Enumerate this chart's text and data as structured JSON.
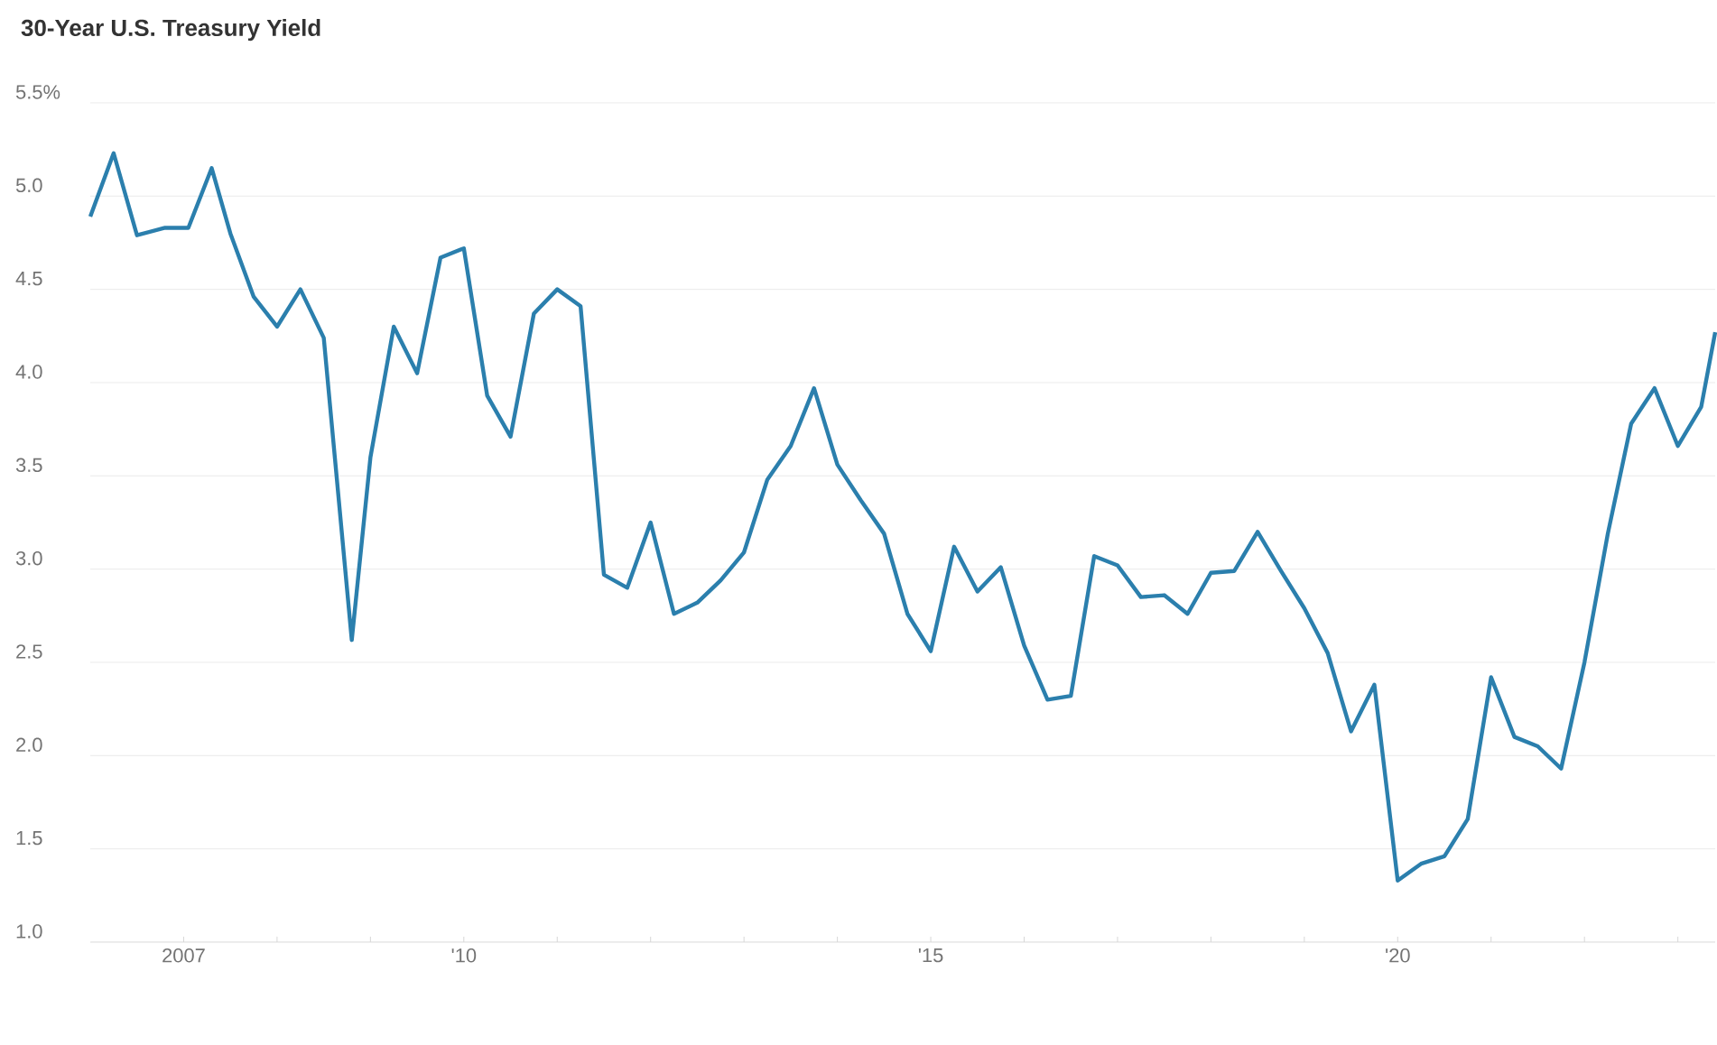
{
  "chart_data": {
    "type": "line",
    "title": "30-Year U.S. Treasury Yield",
    "x": [
      2006.0,
      2006.25,
      2006.5,
      2006.8,
      2007.05,
      2007.3,
      2007.5,
      2007.75,
      2008.0,
      2008.25,
      2008.5,
      2008.8,
      2009.0,
      2009.25,
      2009.5,
      2009.75,
      2010.0,
      2010.25,
      2010.5,
      2010.75,
      2011.0,
      2011.25,
      2011.5,
      2011.75,
      2012.0,
      2012.25,
      2012.5,
      2012.75,
      2013.0,
      2013.25,
      2013.5,
      2013.75,
      2014.0,
      2014.25,
      2014.5,
      2014.75,
      2015.0,
      2015.25,
      2015.5,
      2015.75,
      2016.0,
      2016.25,
      2016.5,
      2016.75,
      2017.0,
      2017.25,
      2017.5,
      2017.75,
      2018.0,
      2018.25,
      2018.5,
      2018.75,
      2019.0,
      2019.25,
      2019.5,
      2019.75,
      2020.0,
      2020.25,
      2020.5,
      2020.75,
      2021.0,
      2021.25,
      2021.5,
      2021.75,
      2022.0,
      2022.25,
      2022.5,
      2022.75,
      2023.0,
      2023.25,
      2023.4
    ],
    "values": [
      4.89,
      5.23,
      4.79,
      4.83,
      4.83,
      5.15,
      4.8,
      4.46,
      4.3,
      4.5,
      4.24,
      2.62,
      3.6,
      4.3,
      4.05,
      4.67,
      4.72,
      3.93,
      3.71,
      4.37,
      4.5,
      4.41,
      2.97,
      2.9,
      3.25,
      2.76,
      2.82,
      2.94,
      3.09,
      3.48,
      3.66,
      3.97,
      3.56,
      3.37,
      3.19,
      2.76,
      2.56,
      3.12,
      2.88,
      3.01,
      2.59,
      2.3,
      2.32,
      3.07,
      3.02,
      2.85,
      2.86,
      2.76,
      2.98,
      2.99,
      3.2,
      2.99,
      2.79,
      2.55,
      2.13,
      2.38,
      1.33,
      1.42,
      1.46,
      1.66,
      2.42,
      2.1,
      2.05,
      1.93,
      2.5,
      3.19,
      3.78,
      3.97,
      3.66,
      3.87,
      4.27
    ],
    "color": "#2b7fad",
    "xlim": [
      2006.0,
      2023.4
    ],
    "xticks": [
      2007,
      {
        "value": 2008,
        "label": null
      },
      {
        "value": 2009,
        "label": null
      },
      {
        "value": 2010,
        "label": "'10"
      },
      {
        "value": 2011,
        "label": null
      },
      {
        "value": 2012,
        "label": null
      },
      {
        "value": 2013,
        "label": null
      },
      {
        "value": 2014,
        "label": null
      },
      {
        "value": 2015,
        "label": "'15"
      },
      {
        "value": 2016,
        "label": null
      },
      {
        "value": 2017,
        "label": null
      },
      {
        "value": 2018,
        "label": null
      },
      {
        "value": 2019,
        "label": null
      },
      {
        "value": 2020,
        "label": "'20"
      },
      {
        "value": 2021,
        "label": null
      },
      {
        "value": 2022,
        "label": null
      },
      {
        "value": 2023,
        "label": null
      }
    ],
    "ylim": [
      1.0,
      5.5
    ],
    "yticks": [
      {
        "value": 1.0,
        "label": "1.0"
      },
      {
        "value": 1.5,
        "label": "1.5"
      },
      {
        "value": 2.0,
        "label": "2.0"
      },
      {
        "value": 2.5,
        "label": "2.5"
      },
      {
        "value": 3.0,
        "label": "3.0"
      },
      {
        "value": 3.5,
        "label": "3.5"
      },
      {
        "value": 4.0,
        "label": "4.0"
      },
      {
        "value": 4.5,
        "label": "4.5"
      },
      {
        "value": 5.0,
        "label": "5.0"
      },
      {
        "value": 5.5,
        "label": "5.5%"
      }
    ],
    "grid": "y",
    "marker": "none",
    "line_style": "solid"
  }
}
